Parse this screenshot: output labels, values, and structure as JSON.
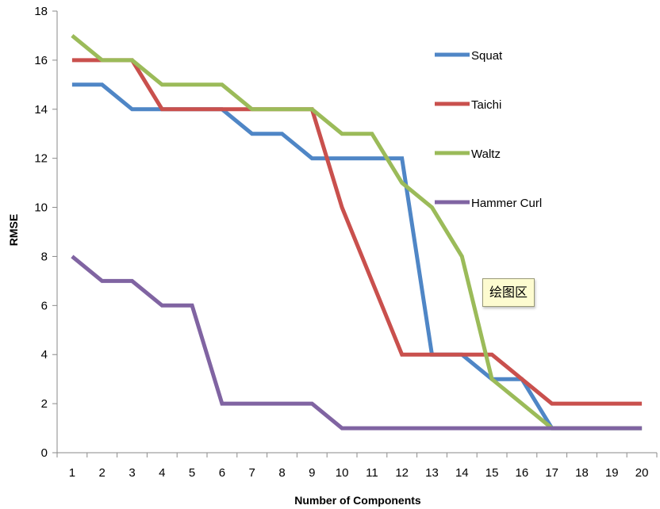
{
  "chart_data": {
    "type": "line",
    "xlabel": "Number of Components",
    "ylabel": "RMSE",
    "x": [
      1,
      2,
      3,
      4,
      5,
      6,
      7,
      8,
      9,
      10,
      11,
      12,
      13,
      14,
      15,
      16,
      17,
      18,
      19,
      20
    ],
    "ylim": [
      0,
      18
    ],
    "yticks": [
      0,
      2,
      4,
      6,
      8,
      10,
      12,
      14,
      16,
      18
    ],
    "grid": false,
    "legend_position": "right",
    "series": [
      {
        "name": "Squat",
        "color": "#4f86c6",
        "values": [
          15,
          15,
          14,
          14,
          14,
          14,
          13,
          13,
          12,
          12,
          12,
          12,
          4,
          4,
          3,
          3,
          1,
          1,
          1,
          1
        ]
      },
      {
        "name": "Taichi",
        "color": "#c9504d",
        "values": [
          16,
          16,
          16,
          14,
          14,
          14,
          14,
          14,
          14,
          10,
          7,
          4,
          4,
          4,
          4,
          3,
          2,
          2,
          2,
          2
        ]
      },
      {
        "name": "Waltz",
        "color": "#9bbb59",
        "values": [
          17,
          16,
          16,
          15,
          15,
          15,
          14,
          14,
          14,
          13,
          13,
          11,
          10,
          8,
          3,
          2,
          1,
          1,
          1,
          1
        ]
      },
      {
        "name": "Hammer Curl",
        "color": "#8064a2",
        "values": [
          8,
          7,
          7,
          6,
          6,
          2,
          2,
          2,
          2,
          1,
          1,
          1,
          1,
          1,
          1,
          1,
          1,
          1,
          1,
          1
        ]
      }
    ]
  },
  "tooltip": {
    "text": "绘图区"
  }
}
